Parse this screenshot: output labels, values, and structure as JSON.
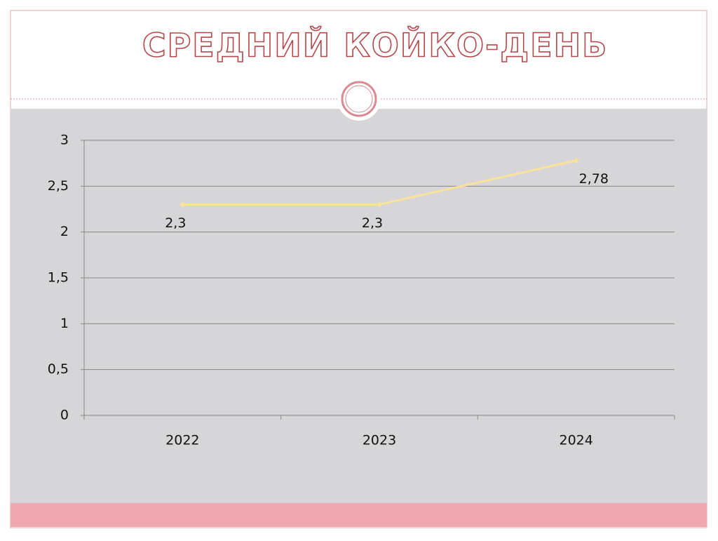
{
  "chart_data": {
    "type": "line",
    "title": "СРЕДНИЙ КОЙКО-ДЕНЬ",
    "categories": [
      "2022",
      "2023",
      "2024"
    ],
    "series": [
      {
        "name": "Средний койко-день",
        "color": "#fbe29a",
        "values": [
          2.3,
          2.3,
          2.78
        ],
        "value_labels": [
          "2,3",
          "2,3",
          "2,78"
        ]
      }
    ],
    "ylim": [
      0,
      3
    ],
    "yticks": [
      0,
      {
        "value": 0.5,
        "label": "0,5"
      },
      1,
      {
        "value": 1.5,
        "label": "1,5"
      },
      2,
      {
        "value": 2.5,
        "label": "2,5"
      },
      3
    ],
    "grid": true
  }
}
